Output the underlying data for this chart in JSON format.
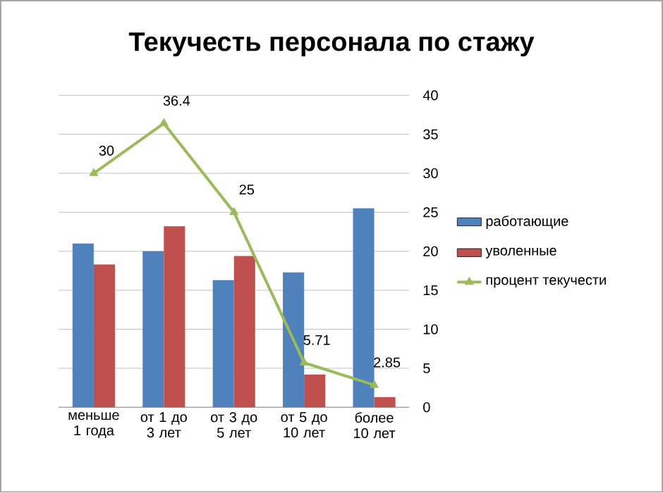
{
  "chart_data": {
    "type": "bar",
    "title": "Текучесть персонала по стажу",
    "categories": [
      "меньше 1 года",
      "от 1 до 3 лет",
      "от 3 до 5 лет",
      "от 5 до 10 лет",
      "более 10 лет"
    ],
    "series": [
      {
        "name": "работающие",
        "color": "#4f81bd",
        "axis": "y2",
        "values": [
          21.0,
          20.0,
          16.3,
          17.3,
          25.5
        ]
      },
      {
        "name": "уволенные",
        "color": "#c0504d",
        "axis": "y2",
        "values": [
          18.3,
          23.2,
          19.4,
          4.2,
          1.3
        ]
      },
      {
        "name": "процент текучести",
        "type": "line",
        "axis": "y2",
        "color": "#9bbb59",
        "marker": "triangle",
        "data_labels": true,
        "values": [
          30,
          36.4,
          25,
          5.71,
          2.85
        ]
      }
    ],
    "y2lim": [
      0,
      40
    ],
    "y2ticks": [
      0,
      5,
      10,
      15,
      20,
      25,
      30,
      35,
      40
    ],
    "grid": true,
    "legend": "right"
  }
}
